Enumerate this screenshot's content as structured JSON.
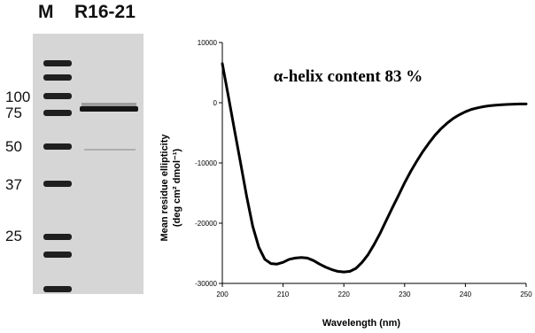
{
  "gel": {
    "lane_labels": [
      "M",
      "R16-21"
    ],
    "mw_labels": [
      "100",
      "75",
      "50",
      "37",
      "25"
    ]
  },
  "chart_data": {
    "type": "line",
    "annotation": "α-helix content 83 %",
    "xlabel": "Wavelength (nm)",
    "ylabel_line1": "Mean residue ellipticity",
    "ylabel_line2": "(deg cm² dmol⁻¹)",
    "xlim": [
      200,
      250
    ],
    "ylim": [
      -30000,
      10000
    ],
    "xticks": [
      200,
      210,
      220,
      230,
      240,
      250
    ],
    "yticks": [
      10000,
      0,
      -10000,
      -20000,
      -30000
    ],
    "series": [
      {
        "x": [
          200,
          201,
          202,
          203,
          204,
          205,
          206,
          207,
          208,
          209,
          210,
          211,
          212,
          213,
          214,
          215,
          216,
          217,
          218,
          219,
          220,
          221,
          222,
          223,
          224,
          225,
          226,
          227,
          228,
          229,
          230,
          231,
          232,
          233,
          234,
          235,
          236,
          237,
          238,
          239,
          240,
          241,
          242,
          243,
          244,
          245,
          246,
          247,
          248,
          249,
          250
        ],
        "y": [
          6500,
          1000,
          -4500,
          -10000,
          -15500,
          -20500,
          -24000,
          -26000,
          -26700,
          -26800,
          -26500,
          -26000,
          -25800,
          -25700,
          -25800,
          -26200,
          -26800,
          -27300,
          -27700,
          -28000,
          -28100,
          -28000,
          -27500,
          -26500,
          -25200,
          -23500,
          -21600,
          -19500,
          -17400,
          -15400,
          -13300,
          -11400,
          -9700,
          -8100,
          -6700,
          -5400,
          -4300,
          -3400,
          -2600,
          -2000,
          -1500,
          -1100,
          -850,
          -650,
          -500,
          -400,
          -330,
          -280,
          -240,
          -210,
          -200
        ]
      }
    ]
  }
}
